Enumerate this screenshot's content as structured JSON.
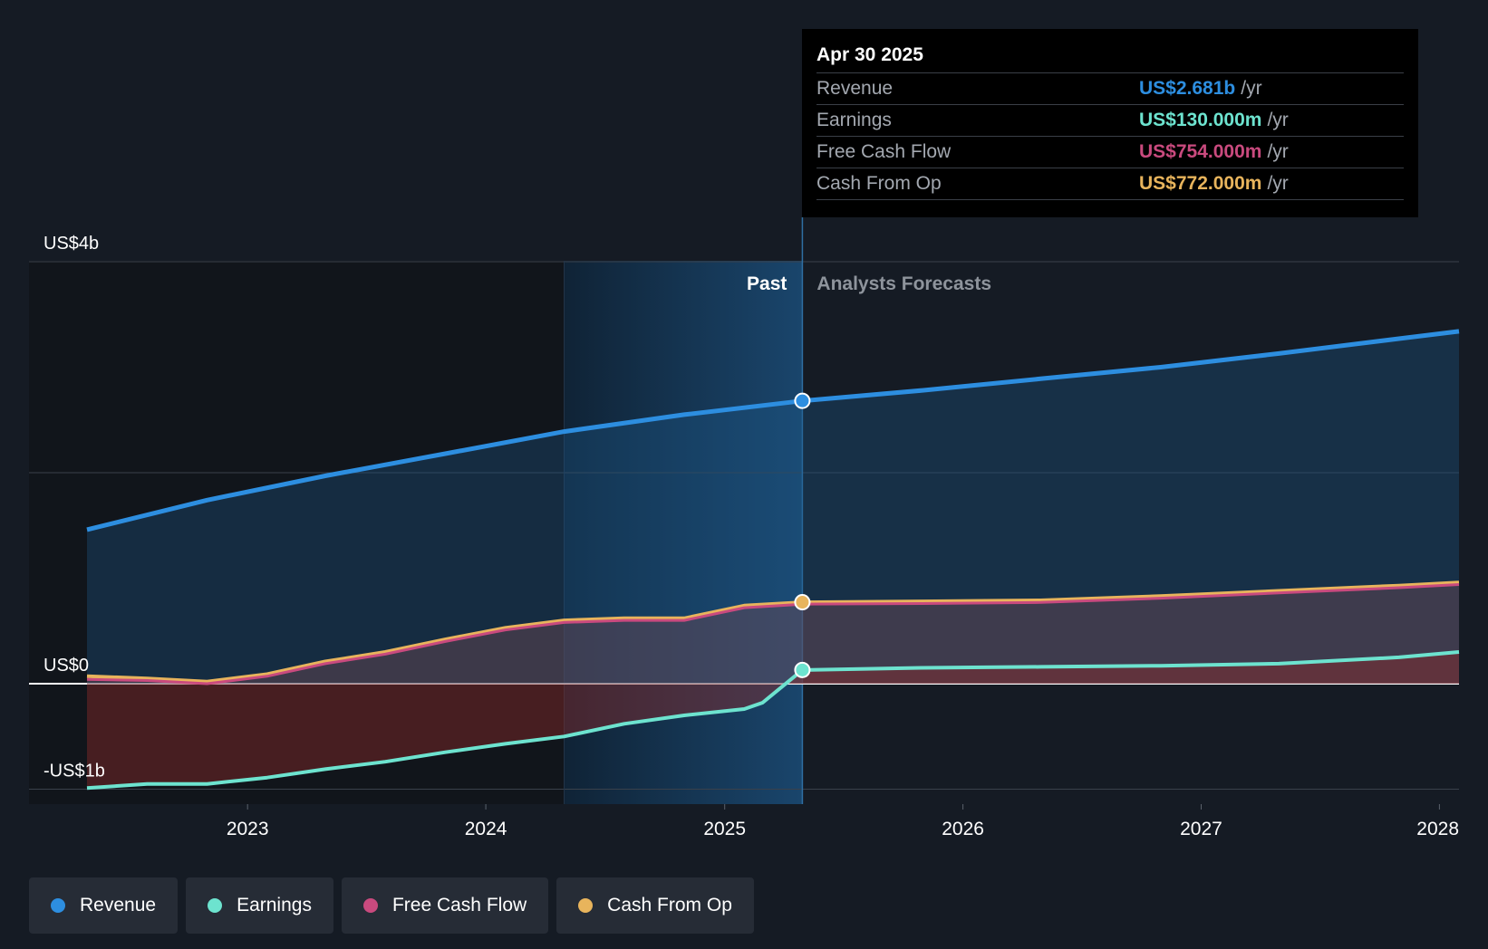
{
  "chart_data": {
    "type": "area",
    "x_unit": "date",
    "y_unit": "US$ billions",
    "ylim": [
      -1,
      4
    ],
    "x_ticks": [
      "2023",
      "2024",
      "2025",
      "2026",
      "2027",
      "2028"
    ],
    "y_ticks": [
      {
        "value": 4,
        "label": "US$4b"
      },
      {
        "value": 0,
        "label": "US$0"
      },
      {
        "value": -1,
        "label": "-US$1b"
      }
    ],
    "past_label": "Past",
    "forecast_label": "Analysts Forecasts",
    "past_cutoff": "2025-04-30",
    "past_band_start": "2024-04-30",
    "x_start": "2022-04-30",
    "x_end": "2028-01-31",
    "grid": true,
    "legend_position": "bottom",
    "series": [
      {
        "name": "Revenue",
        "color": "#2d8ee0",
        "marker_date": "2025-04-30",
        "points": [
          [
            "2022-04-30",
            1.46
          ],
          [
            "2022-10-31",
            1.74
          ],
          [
            "2023-04-30",
            1.97
          ],
          [
            "2023-10-31",
            2.18
          ],
          [
            "2024-04-30",
            2.39
          ],
          [
            "2024-10-31",
            2.55
          ],
          [
            "2025-04-30",
            2.681
          ],
          [
            "2025-10-31",
            2.78
          ],
          [
            "2026-04-30",
            2.89
          ],
          [
            "2026-10-31",
            3.0
          ],
          [
            "2027-04-30",
            3.13
          ],
          [
            "2027-10-31",
            3.27
          ],
          [
            "2028-01-31",
            3.34
          ]
        ]
      },
      {
        "name": "Earnings",
        "color": "#6de3cf",
        "marker_date": "2025-04-30",
        "points": [
          [
            "2022-04-30",
            -0.99
          ],
          [
            "2022-07-31",
            -0.95
          ],
          [
            "2022-10-31",
            -0.95
          ],
          [
            "2023-01-31",
            -0.89
          ],
          [
            "2023-04-30",
            -0.81
          ],
          [
            "2023-07-31",
            -0.74
          ],
          [
            "2023-10-31",
            -0.65
          ],
          [
            "2024-01-31",
            -0.57
          ],
          [
            "2024-04-30",
            -0.5
          ],
          [
            "2024-07-31",
            -0.38
          ],
          [
            "2024-10-31",
            -0.3
          ],
          [
            "2025-01-31",
            -0.24
          ],
          [
            "2025-02-28",
            -0.18
          ],
          [
            "2025-04-30",
            0.13
          ],
          [
            "2025-10-31",
            0.15
          ],
          [
            "2026-04-30",
            0.16
          ],
          [
            "2026-10-31",
            0.17
          ],
          [
            "2027-04-30",
            0.19
          ],
          [
            "2027-10-31",
            0.25
          ],
          [
            "2028-01-31",
            0.3
          ]
        ]
      },
      {
        "name": "Free Cash Flow",
        "color": "#c94a7e",
        "marker_date": "2025-04-30",
        "points": [
          [
            "2022-04-30",
            0.04
          ],
          [
            "2022-07-31",
            0.03
          ],
          [
            "2022-10-31",
            0.0
          ],
          [
            "2023-01-31",
            0.07
          ],
          [
            "2023-04-30",
            0.19
          ],
          [
            "2023-07-31",
            0.28
          ],
          [
            "2023-10-31",
            0.4
          ],
          [
            "2024-01-31",
            0.51
          ],
          [
            "2024-04-30",
            0.58
          ],
          [
            "2024-07-31",
            0.6
          ],
          [
            "2024-10-31",
            0.6
          ],
          [
            "2025-01-31",
            0.72
          ],
          [
            "2025-04-30",
            0.754
          ],
          [
            "2025-10-31",
            0.76
          ],
          [
            "2026-04-30",
            0.77
          ],
          [
            "2026-10-31",
            0.81
          ],
          [
            "2027-04-30",
            0.86
          ],
          [
            "2027-10-31",
            0.91
          ],
          [
            "2028-01-31",
            0.94
          ]
        ]
      },
      {
        "name": "Cash From Op",
        "color": "#e8b45c",
        "marker_date": "2025-04-30",
        "points": [
          [
            "2022-04-30",
            0.07
          ],
          [
            "2022-07-31",
            0.05
          ],
          [
            "2022-10-31",
            0.02
          ],
          [
            "2023-01-31",
            0.09
          ],
          [
            "2023-04-30",
            0.21
          ],
          [
            "2023-07-31",
            0.3
          ],
          [
            "2023-10-31",
            0.42
          ],
          [
            "2024-01-31",
            0.53
          ],
          [
            "2024-04-30",
            0.6
          ],
          [
            "2024-07-31",
            0.62
          ],
          [
            "2024-10-31",
            0.62
          ],
          [
            "2025-01-31",
            0.74
          ],
          [
            "2025-04-30",
            0.772
          ],
          [
            "2025-10-31",
            0.78
          ],
          [
            "2026-04-30",
            0.79
          ],
          [
            "2026-10-31",
            0.83
          ],
          [
            "2027-04-30",
            0.88
          ],
          [
            "2027-10-31",
            0.93
          ],
          [
            "2028-01-31",
            0.96
          ]
        ]
      }
    ]
  },
  "tooltip": {
    "date": "Apr 30 2025",
    "unit": "/yr",
    "rows": [
      {
        "label": "Revenue",
        "value": "US$2.681b",
        "color": "#2d8ee0"
      },
      {
        "label": "Earnings",
        "value": "US$130.000m",
        "color": "#6de3cf"
      },
      {
        "label": "Free Cash Flow",
        "value": "US$754.000m",
        "color": "#c94a7e"
      },
      {
        "label": "Cash From Op",
        "value": "US$772.000m",
        "color": "#e8b45c"
      }
    ]
  },
  "legend": [
    {
      "label": "Revenue",
      "color": "#2d8ee0"
    },
    {
      "label": "Earnings",
      "color": "#6de3cf"
    },
    {
      "label": "Free Cash Flow",
      "color": "#c94a7e"
    },
    {
      "label": "Cash From Op",
      "color": "#e8b45c"
    }
  ]
}
